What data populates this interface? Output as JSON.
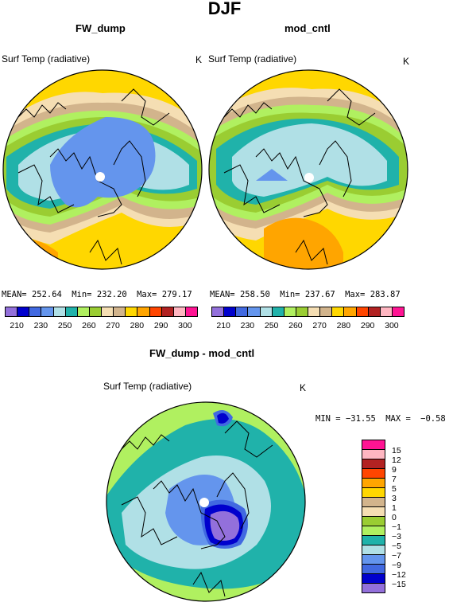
{
  "header": {
    "season": "DJF"
  },
  "panels": {
    "left": {
      "title": "FW_dump",
      "variable": "Surf Temp (radiative)",
      "unit": "K",
      "mean_label": "MEAN=",
      "mean": "252.64",
      "min_label": "Min=",
      "min": "232.20",
      "max_label": "Max=",
      "max": "279.17"
    },
    "right": {
      "title": "mod_cntl",
      "variable": "Surf Temp (radiative)",
      "unit": "K",
      "mean_label": "MEAN=",
      "mean": "258.50",
      "min_label": "Min=",
      "min": "237.67",
      "max_label": "Max=",
      "max": "283.87"
    },
    "diff": {
      "title": "FW_dump - mod_cntl",
      "variable": "Surf Temp (radiative)",
      "unit": "K",
      "min_label": "MIN =",
      "min": "−31.55",
      "max_label": "MAX =",
      "max": "−0.58"
    }
  },
  "colorbar_abs": {
    "colors": [
      "#9370db",
      "#0000cd",
      "#4169e1",
      "#6495ed",
      "#b0e0e6",
      "#20b2aa",
      "#b0f060",
      "#9acd32",
      "#f5deb3",
      "#d2b48c",
      "#ffd700",
      "#ffa500",
      "#ff4500",
      "#b22222",
      "#ffb6c1",
      "#ff1493"
    ],
    "tick_labels": [
      "210",
      "230",
      "250",
      "260",
      "270",
      "280",
      "290",
      "300"
    ]
  },
  "colorbar_diff": {
    "colors": [
      "#ff1493",
      "#ffb6c1",
      "#b22222",
      "#ff4500",
      "#ffa500",
      "#ffd700",
      "#d2b48c",
      "#f5deb3",
      "#9acd32",
      "#b0f060",
      "#20b2aa",
      "#b0e0e6",
      "#6495ed",
      "#4169e1",
      "#0000cd",
      "#9370db"
    ],
    "tick_labels": [
      "15",
      "12",
      "9",
      "7",
      "5",
      "3",
      "1",
      "0",
      "−1",
      "−3",
      "−5",
      "−7",
      "−9",
      "−12",
      "−15"
    ]
  }
}
